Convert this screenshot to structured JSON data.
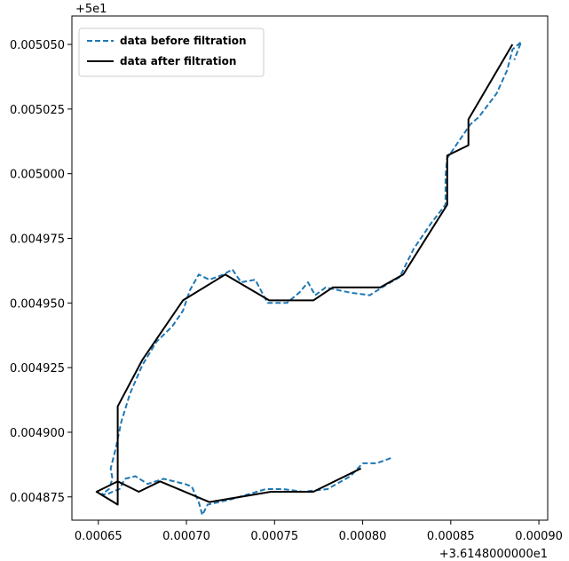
{
  "chart_data": {
    "type": "line",
    "title": "",
    "xlabel": "",
    "ylabel": "",
    "x_offset_label": "+3.6148000000e1",
    "y_offset_label": "+5e1",
    "xlim": [
      0.000635,
      0.000905
    ],
    "ylim": [
      0.004866,
      0.005061
    ],
    "x_ticks": [
      0.00065,
      0.0007,
      0.00075,
      0.0008,
      0.00085,
      0.0009
    ],
    "x_tick_labels": [
      "0.00065",
      "0.00070",
      "0.00075",
      "0.00080",
      "0.00085",
      "0.00090"
    ],
    "y_ticks": [
      0.004875,
      0.0049,
      0.004925,
      0.00495,
      0.004975,
      0.005,
      0.005025,
      0.00505
    ],
    "y_tick_labels": [
      "0.004875",
      "0.004900",
      "0.004925",
      "0.004950",
      "0.004975",
      "0.005000",
      "0.005025",
      "0.005050"
    ],
    "grid": false,
    "legend_position": "top-left",
    "series": [
      {
        "name": "data before filtration",
        "color": "#1f77b4",
        "style": "dashed",
        "points": [
          [
            0.000816,
            0.00489
          ],
          [
            0.000808,
            0.004888
          ],
          [
            0.0008,
            0.004888
          ],
          [
            0.000793,
            0.004883
          ],
          [
            0.00078,
            0.004878
          ],
          [
            0.000766,
            0.004877
          ],
          [
            0.000755,
            0.004878
          ],
          [
            0.000745,
            0.004878
          ],
          [
            0.000735,
            0.004876
          ],
          [
            0.000725,
            0.004874
          ],
          [
            0.000712,
            0.004872
          ],
          [
            0.000709,
            0.004868
          ],
          [
            0.000707,
            0.004873
          ],
          [
            0.000703,
            0.004879
          ],
          [
            0.000699,
            0.00488
          ],
          [
            0.000687,
            0.004882
          ],
          [
            0.000678,
            0.00488
          ],
          [
            0.000671,
            0.004883
          ],
          [
            0.000665,
            0.004882
          ],
          [
            0.000662,
            0.004878
          ],
          [
            0.000658,
            0.004877
          ],
          [
            0.000655,
            0.004876
          ],
          [
            0.000652,
            0.004876
          ],
          [
            0.000656,
            0.004878
          ],
          [
            0.000658,
            0.004882
          ],
          [
            0.000657,
            0.004886
          ],
          [
            0.00066,
            0.004894
          ],
          [
            0.000663,
            0.004904
          ],
          [
            0.000668,
            0.004915
          ],
          [
            0.000675,
            0.004926
          ],
          [
            0.000683,
            0.004935
          ],
          [
            0.000692,
            0.004941
          ],
          [
            0.000698,
            0.004947
          ],
          [
            0.000702,
            0.004955
          ],
          [
            0.000707,
            0.004961
          ],
          [
            0.000713,
            0.004959
          ],
          [
            0.000721,
            0.004961
          ],
          [
            0.000726,
            0.004963
          ],
          [
            0.000731,
            0.004958
          ],
          [
            0.000739,
            0.004959
          ],
          [
            0.000746,
            0.00495
          ],
          [
            0.000757,
            0.00495
          ],
          [
            0.000764,
            0.004954
          ],
          [
            0.000769,
            0.004958
          ],
          [
            0.000773,
            0.004953
          ],
          [
            0.000779,
            0.004956
          ],
          [
            0.000793,
            0.004954
          ],
          [
            0.000804,
            0.004953
          ],
          [
            0.000811,
            0.004956
          ],
          [
            0.000821,
            0.00496
          ],
          [
            0.000829,
            0.004971
          ],
          [
            0.000839,
            0.004981
          ],
          [
            0.000847,
            0.004988
          ],
          [
            0.000847,
            0.004999
          ],
          [
            0.000848,
            0.005006
          ],
          [
            0.000853,
            0.005011
          ],
          [
            0.000861,
            0.005019
          ],
          [
            0.000866,
            0.005022
          ],
          [
            0.000876,
            0.005031
          ],
          [
            0.000882,
            0.00504
          ],
          [
            0.000885,
            0.005048
          ],
          [
            0.00089,
            0.005051
          ],
          [
            0.000886,
            0.005044
          ]
        ]
      },
      {
        "name": "data after filtration",
        "color": "#000000",
        "style": "solid",
        "points": [
          [
            0.000799,
            0.004886
          ],
          [
            0.000772,
            0.004877
          ],
          [
            0.000748,
            0.004877
          ],
          [
            0.000713,
            0.004873
          ],
          [
            0.000685,
            0.004881
          ],
          [
            0.000673,
            0.004877
          ],
          [
            0.000661,
            0.004881
          ],
          [
            0.000649,
            0.004877
          ],
          [
            0.000661,
            0.004872
          ],
          [
            0.000661,
            0.00491
          ],
          [
            0.000675,
            0.004928
          ],
          [
            0.000698,
            0.004951
          ],
          [
            0.000722,
            0.004961
          ],
          [
            0.000747,
            0.004951
          ],
          [
            0.000772,
            0.004951
          ],
          [
            0.000783,
            0.004956
          ],
          [
            0.00081,
            0.004956
          ],
          [
            0.000823,
            0.004961
          ],
          [
            0.000848,
            0.004988
          ],
          [
            0.000848,
            0.005007
          ],
          [
            0.00086,
            0.005011
          ],
          [
            0.00086,
            0.005021
          ],
          [
            0.000885,
            0.00505
          ]
        ]
      }
    ]
  }
}
